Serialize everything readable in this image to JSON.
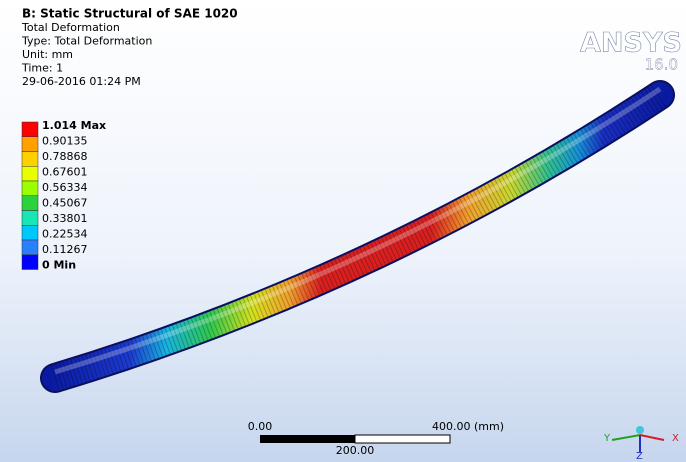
{
  "header": {
    "title": "B: Static Structural of SAE 1020",
    "lines": [
      "Total Deformation",
      "Type: Total Deformation",
      "Unit: mm",
      "Time: 1",
      "29-06-2016 01:24 PM"
    ]
  },
  "legend": {
    "labels": [
      "1.014 Max",
      "0.90135",
      "0.78868",
      "0.67601",
      "0.56334",
      "0.45067",
      "0.33801",
      "0.22534",
      "0.11267",
      "0 Min"
    ],
    "colors": [
      "#ff0000",
      "#ffa000",
      "#ffd000",
      "#e8ff00",
      "#9cff00",
      "#2cd23c",
      "#18e6b4",
      "#00c8ff",
      "#2880ff",
      "#0000ff"
    ]
  },
  "logo": {
    "name": "ANSYS",
    "version": "16.0"
  },
  "scale_bar": {
    "left": "0.00",
    "right": "400.00 (mm)",
    "middle": "200.00"
  },
  "triad": {
    "y": "Y",
    "x": "X",
    "z": "Z"
  }
}
